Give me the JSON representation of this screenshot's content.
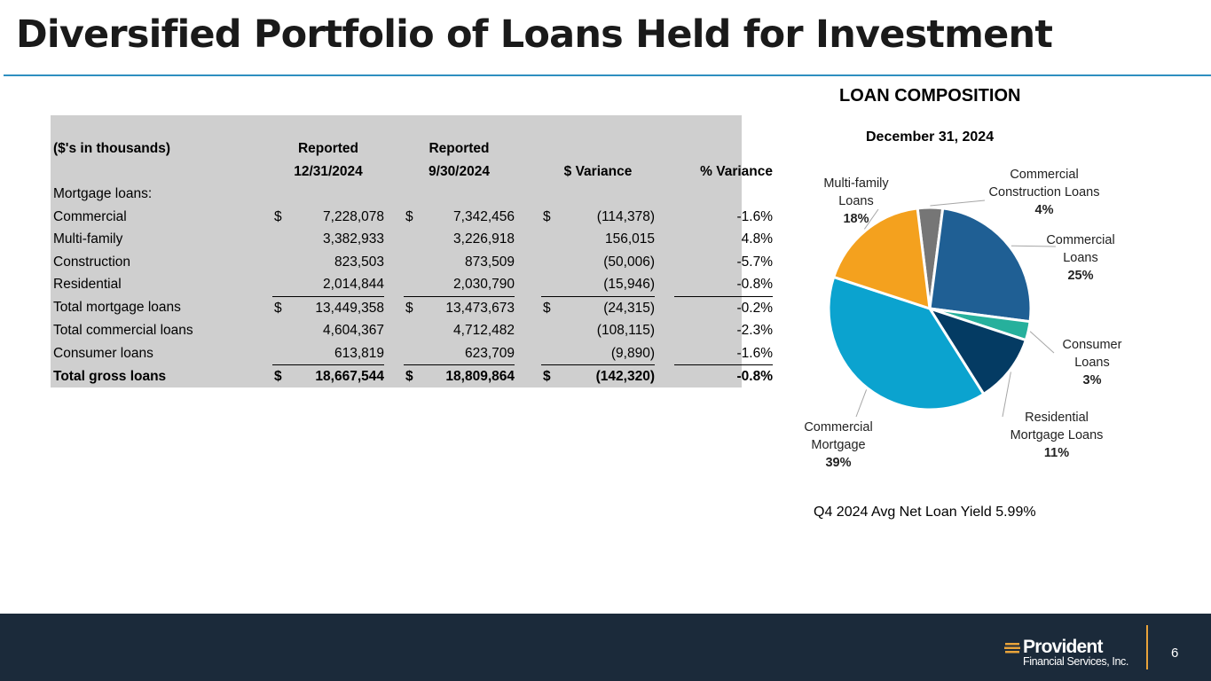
{
  "title": "Diversified Portfolio of Loans Held for Investment",
  "table": {
    "header_row1": [
      "($'s in thousands)",
      "Reported",
      "Reported",
      "",
      ""
    ],
    "header_row2": [
      "",
      "12/31/2024",
      "9/30/2024",
      "$ Variance",
      "% Variance"
    ],
    "section_label": "Mortgage loans:",
    "rows": [
      {
        "label": "Commercial",
        "s1": "$",
        "v1": "7,228,078",
        "s2": "$",
        "v2": "7,342,456",
        "s3": "$",
        "v3": "(114,378)",
        "v4": "-1.6%"
      },
      {
        "label": "Multi-family",
        "s1": "",
        "v1": "3,382,933",
        "s2": "",
        "v2": "3,226,918",
        "s3": "",
        "v3": "156,015",
        "v4": "4.8%"
      },
      {
        "label": "Construction",
        "s1": "",
        "v1": "823,503",
        "s2": "",
        "v2": "873,509",
        "s3": "",
        "v3": "(50,006)",
        "v4": "-5.7%"
      },
      {
        "label": "Residential",
        "s1": "",
        "v1": "2,014,844",
        "s2": "",
        "v2": "2,030,790",
        "s3": "",
        "v3": "(15,946)",
        "v4": "-0.8%"
      },
      {
        "label": "Total mortgage loans",
        "s1": "$",
        "v1": "13,449,358",
        "s2": "$",
        "v2": "13,473,673",
        "s3": "$",
        "v3": "(24,315)",
        "v4": "-0.2%"
      },
      {
        "label": "Total commercial loans",
        "s1": "",
        "v1": "4,604,367",
        "s2": "",
        "v2": "4,712,482",
        "s3": "",
        "v3": "(108,115)",
        "v4": "-2.3%"
      },
      {
        "label": "Consumer loans",
        "s1": "",
        "v1": "613,819",
        "s2": "",
        "v2": "623,709",
        "s3": "",
        "v3": "(9,890)",
        "v4": "-1.6%"
      },
      {
        "label": "Total gross loans",
        "s1": "$",
        "v1": "18,667,544",
        "s2": "$",
        "v2": "18,809,864",
        "s3": "$",
        "v3": "(142,320)",
        "v4": "-0.8%"
      }
    ]
  },
  "chart_data": {
    "type": "pie",
    "title": "LOAN COMPOSITION",
    "subtitle": "December 31, 2024",
    "slices": [
      {
        "name": "Commercial Construction Loans",
        "label_lines": [
          "Commercial",
          "Construction Loans"
        ],
        "pct_label": "4%",
        "value": 4,
        "color": "#767676"
      },
      {
        "name": "Commercial Loans",
        "label_lines": [
          "Commercial",
          "Loans"
        ],
        "pct_label": "25%",
        "value": 25,
        "color": "#1f5f94"
      },
      {
        "name": "Consumer Loans",
        "label_lines": [
          "Consumer",
          "Loans"
        ],
        "pct_label": "3%",
        "value": 3,
        "color": "#26b09c"
      },
      {
        "name": "Residential Mortgage Loans",
        "label_lines": [
          "Residential",
          "Mortgage Loans"
        ],
        "pct_label": "11%",
        "value": 11,
        "color": "#043b63"
      },
      {
        "name": "Commercial Mortgage",
        "label_lines": [
          "Commercial",
          "Mortgage"
        ],
        "pct_label": "39%",
        "value": 39,
        "color": "#0ba3cf"
      },
      {
        "name": "Multi-family Loans",
        "label_lines": [
          "Multi-family",
          "Loans"
        ],
        "pct_label": "18%",
        "value": 18,
        "color": "#f4a11e"
      }
    ]
  },
  "note": "Q4 2024 Avg Net Loan Yield 5.99%",
  "footer": {
    "logo_name": "Provident",
    "logo_sub": "Financial Services, Inc.",
    "page_number": "6",
    "background": "#1b2a3a",
    "accent": "#e8a33a"
  }
}
